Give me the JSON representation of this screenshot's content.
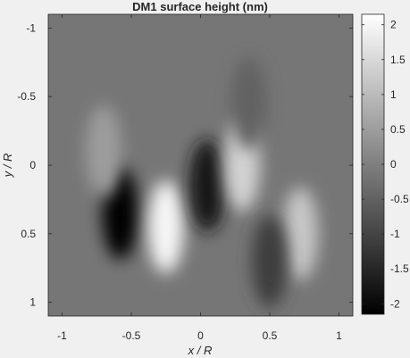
{
  "chart_data": {
    "type": "heatmap",
    "title": "DM1 surface height (nm)",
    "xlabel": "x / R",
    "ylabel": "y / R",
    "xlim": [
      -1.1,
      1.1
    ],
    "ylim": [
      -1.1,
      1.1
    ],
    "y_direction": "reversed",
    "x_ticks": [
      -1,
      -0.5,
      0,
      0.5,
      1
    ],
    "x_tick_labels": [
      "-1",
      "-0.5",
      "0",
      "0.5",
      "1"
    ],
    "y_ticks": [
      -1,
      -0.5,
      0,
      0.5,
      1
    ],
    "y_tick_labels": [
      "-1",
      "-0.5",
      "0",
      "0.5",
      "1"
    ],
    "colorbar": {
      "colormap": "gray",
      "clim": [
        -2.15,
        2.15
      ],
      "ticks": [
        2,
        1.5,
        1,
        0.5,
        0,
        -0.5,
        -1,
        -1.5,
        -2
      ],
      "tick_labels": [
        "2",
        "1.5",
        "1",
        "0.5",
        "0",
        "-0.5",
        "-1",
        "-1.5",
        "-2"
      ]
    },
    "features": [
      {
        "x": -0.58,
        "y": 0.35,
        "value": -2.1
      },
      {
        "x": -0.25,
        "y": 0.45,
        "value": 2.0
      },
      {
        "x": 0.05,
        "y": 0.15,
        "value": -1.8
      },
      {
        "x": 0.3,
        "y": 0.0,
        "value": 1.4
      },
      {
        "x": 0.72,
        "y": 0.5,
        "value": 1.2
      },
      {
        "x": 0.5,
        "y": 0.7,
        "value": -1.1
      },
      {
        "x": -0.7,
        "y": -0.1,
        "value": 0.5
      },
      {
        "x": 0.35,
        "y": -0.45,
        "value": -0.5
      }
    ]
  }
}
